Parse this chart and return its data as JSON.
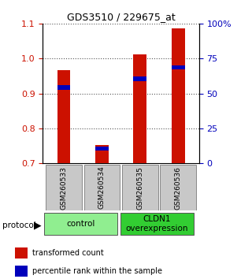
{
  "title": "GDS3510 / 229675_at",
  "samples": [
    "GSM260533",
    "GSM260534",
    "GSM260535",
    "GSM260536"
  ],
  "transformed_counts": [
    0.967,
    0.752,
    1.013,
    1.087
  ],
  "percentile_ranks": [
    0.917,
    0.742,
    0.942,
    0.975
  ],
  "bar_bottom": 0.7,
  "ylim_left": [
    0.7,
    1.1
  ],
  "ylim_right": [
    0,
    100
  ],
  "yticks_left": [
    0.7,
    0.8,
    0.9,
    1.0,
    1.1
  ],
  "yticks_right": [
    0,
    25,
    50,
    75,
    100
  ],
  "groups": [
    {
      "label": "control",
      "samples": [
        0,
        1
      ],
      "color": "#90EE90"
    },
    {
      "label": "CLDN1\noverexpression",
      "samples": [
        2,
        3
      ],
      "color": "#32CD32"
    }
  ],
  "bar_color": "#CC1100",
  "percentile_color": "#0000BB",
  "bar_width": 0.35,
  "sample_box_color": "#C8C8C8",
  "left_tick_color": "#CC1100",
  "right_tick_color": "#0000BB",
  "dotted_line_color": "#555555",
  "legend_items": [
    {
      "color": "#CC1100",
      "label": "transformed count"
    },
    {
      "color": "#0000BB",
      "label": "percentile rank within the sample"
    }
  ],
  "pct_bar_height": 0.012
}
